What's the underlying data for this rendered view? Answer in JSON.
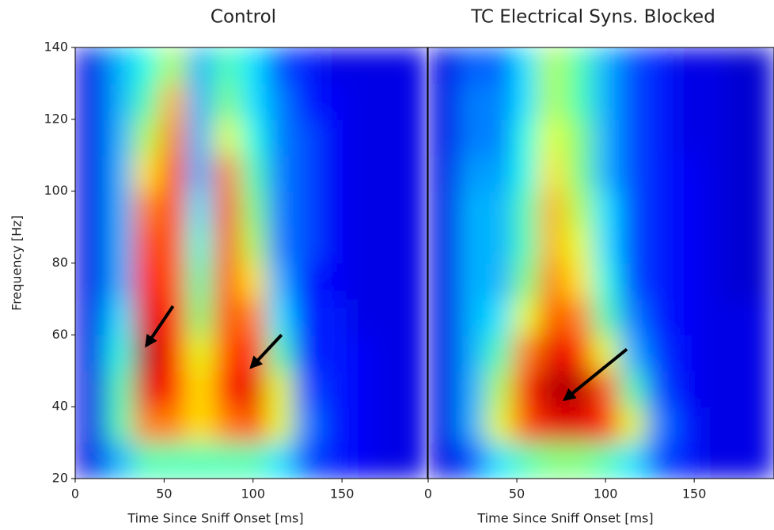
{
  "chart_data": [
    {
      "type": "heatmap",
      "title": "Control",
      "xlabel": "Time Since Sniff Onset [ms]",
      "ylabel": "Frequency [Hz]",
      "xlim": [
        0,
        198
      ],
      "ylim": [
        20,
        140
      ],
      "xticks": [
        0,
        50,
        100,
        150
      ],
      "yticks": [
        20,
        40,
        60,
        80,
        100,
        120,
        140
      ],
      "colormap": "jet",
      "x": [
        10,
        25,
        40,
        55,
        70,
        85,
        100,
        115,
        130,
        145,
        160,
        175,
        190
      ],
      "y": [
        25,
        35,
        45,
        55,
        65,
        75,
        85,
        95,
        105,
        115,
        125,
        135
      ],
      "z": [
        [
          0.1,
          0.3,
          0.45,
          0.45,
          0.45,
          0.45,
          0.45,
          0.35,
          0.2,
          0.15,
          0.12,
          0.1,
          0.1
        ],
        [
          0.1,
          0.45,
          0.75,
          0.75,
          0.65,
          0.75,
          0.8,
          0.6,
          0.25,
          0.15,
          0.12,
          0.1,
          0.1
        ],
        [
          0.1,
          0.45,
          0.9,
          0.85,
          0.65,
          0.85,
          0.9,
          0.6,
          0.2,
          0.15,
          0.12,
          0.1,
          0.1
        ],
        [
          0.1,
          0.4,
          0.95,
          0.85,
          0.6,
          0.8,
          0.85,
          0.45,
          0.15,
          0.15,
          0.12,
          0.1,
          0.1
        ],
        [
          0.1,
          0.35,
          0.9,
          0.85,
          0.5,
          0.8,
          0.75,
          0.35,
          0.15,
          0.15,
          0.1,
          0.1,
          0.1
        ],
        [
          0.1,
          0.3,
          0.85,
          0.8,
          0.45,
          0.8,
          0.65,
          0.3,
          0.15,
          0.12,
          0.1,
          0.1,
          0.1
        ],
        [
          0.1,
          0.3,
          0.8,
          0.8,
          0.4,
          0.8,
          0.55,
          0.25,
          0.2,
          0.12,
          0.1,
          0.1,
          0.1
        ],
        [
          0.1,
          0.3,
          0.75,
          0.8,
          0.35,
          0.8,
          0.5,
          0.25,
          0.2,
          0.12,
          0.1,
          0.1,
          0.1
        ],
        [
          0.1,
          0.3,
          0.65,
          0.8,
          0.3,
          0.75,
          0.45,
          0.25,
          0.2,
          0.12,
          0.1,
          0.1,
          0.1
        ],
        [
          0.1,
          0.3,
          0.55,
          0.75,
          0.3,
          0.6,
          0.4,
          0.25,
          0.2,
          0.12,
          0.1,
          0.1,
          0.1
        ],
        [
          0.1,
          0.3,
          0.45,
          0.7,
          0.3,
          0.5,
          0.35,
          0.25,
          0.15,
          0.12,
          0.1,
          0.1,
          0.1
        ],
        [
          0.1,
          0.3,
          0.4,
          0.55,
          0.3,
          0.45,
          0.35,
          0.2,
          0.15,
          0.1,
          0.1,
          0.1,
          0.1
        ]
      ],
      "arrows": [
        {
          "from": [
            55,
            68
          ],
          "to": [
            40,
            57
          ]
        },
        {
          "from": [
            116,
            60
          ],
          "to": [
            99,
            51
          ]
        }
      ]
    },
    {
      "type": "heatmap",
      "title": "TC Electrical Syns. Blocked",
      "xlabel": "Time Since Sniff Onset [ms]",
      "xlim": [
        0,
        195
      ],
      "ylim": [
        20,
        140
      ],
      "xticks": [
        0,
        50,
        100,
        150
      ],
      "colormap": "jet",
      "x": [
        10,
        25,
        40,
        55,
        70,
        85,
        100,
        115,
        130,
        145,
        160,
        175,
        190
      ],
      "y": [
        25,
        35,
        45,
        55,
        65,
        75,
        85,
        95,
        105,
        115,
        125,
        135
      ],
      "z": [
        [
          0.1,
          0.2,
          0.35,
          0.45,
          0.5,
          0.5,
          0.45,
          0.35,
          0.2,
          0.15,
          0.1,
          0.1,
          0.1
        ],
        [
          0.1,
          0.3,
          0.6,
          0.8,
          0.9,
          0.9,
          0.85,
          0.6,
          0.25,
          0.15,
          0.1,
          0.1,
          0.1
        ],
        [
          0.1,
          0.3,
          0.55,
          0.85,
          0.95,
          0.95,
          0.8,
          0.45,
          0.2,
          0.12,
          0.1,
          0.1,
          0.1
        ],
        [
          0.1,
          0.3,
          0.45,
          0.75,
          0.9,
          0.85,
          0.6,
          0.3,
          0.18,
          0.12,
          0.1,
          0.1,
          0.1
        ],
        [
          0.1,
          0.3,
          0.35,
          0.6,
          0.8,
          0.75,
          0.45,
          0.25,
          0.15,
          0.12,
          0.1,
          0.1,
          0.1
        ],
        [
          0.1,
          0.3,
          0.3,
          0.5,
          0.75,
          0.65,
          0.4,
          0.2,
          0.15,
          0.12,
          0.1,
          0.08,
          0.08
        ],
        [
          0.1,
          0.3,
          0.3,
          0.45,
          0.7,
          0.6,
          0.35,
          0.2,
          0.15,
          0.12,
          0.1,
          0.08,
          0.08
        ],
        [
          0.1,
          0.3,
          0.3,
          0.45,
          0.7,
          0.55,
          0.35,
          0.2,
          0.15,
          0.12,
          0.1,
          0.08,
          0.08
        ],
        [
          0.1,
          0.28,
          0.28,
          0.4,
          0.65,
          0.5,
          0.3,
          0.2,
          0.15,
          0.12,
          0.1,
          0.08,
          0.08
        ],
        [
          0.1,
          0.25,
          0.25,
          0.4,
          0.6,
          0.5,
          0.3,
          0.2,
          0.15,
          0.1,
          0.1,
          0.08,
          0.08
        ],
        [
          0.1,
          0.25,
          0.25,
          0.35,
          0.55,
          0.45,
          0.3,
          0.2,
          0.15,
          0.1,
          0.1,
          0.08,
          0.08
        ],
        [
          0.1,
          0.22,
          0.22,
          0.35,
          0.55,
          0.45,
          0.3,
          0.2,
          0.15,
          0.1,
          0.1,
          0.08,
          0.08
        ]
      ],
      "arrows": [
        {
          "from": [
            112,
            56
          ],
          "to": [
            77,
            42
          ]
        }
      ]
    }
  ]
}
